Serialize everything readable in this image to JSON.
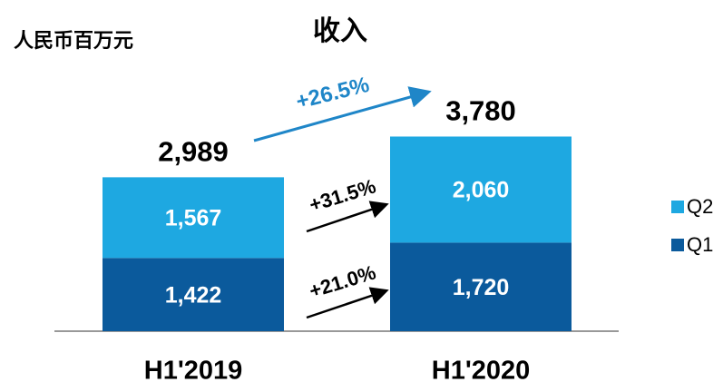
{
  "chart_data": {
    "type": "stacked_bar",
    "title": "收入",
    "unit_label": "人民币百万元",
    "categories": [
      "H1'2019",
      "H1'2020"
    ],
    "series": [
      {
        "name": "Q1",
        "color": "#0b5a9c",
        "values": [
          1422,
          1720
        ],
        "value_labels": [
          "1,422",
          "1,720"
        ]
      },
      {
        "name": "Q2",
        "color": "#1ea8e1",
        "values": [
          1567,
          2060
        ],
        "value_labels": [
          "1,567",
          "2,060"
        ]
      }
    ],
    "totals": {
      "values": [
        2989,
        3780
      ],
      "value_labels": [
        "2,989",
        "3,780"
      ]
    },
    "annotations": [
      "+26.5%",
      "+31.5%",
      "+21.0%"
    ],
    "ylim": [
      0,
      4000
    ]
  }
}
